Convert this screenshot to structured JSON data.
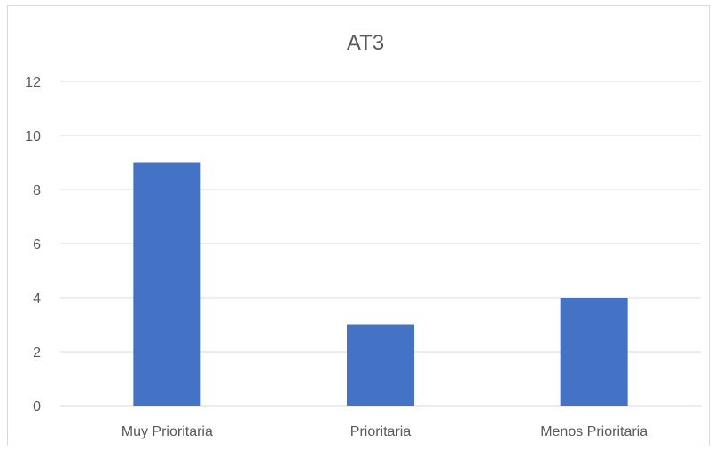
{
  "chart_data": {
    "type": "bar",
    "title": "AT3",
    "categories": [
      "Muy Prioritaria",
      "Prioritaria",
      "Menos Prioritaria"
    ],
    "values": [
      9,
      3,
      4
    ],
    "ylim": [
      0,
      12
    ],
    "yticks": [
      0,
      2,
      4,
      6,
      8,
      10,
      12
    ],
    "grid": true,
    "bar_color": "#4472c4",
    "grid_color": "#d9d9d9",
    "text_color": "#595959"
  }
}
